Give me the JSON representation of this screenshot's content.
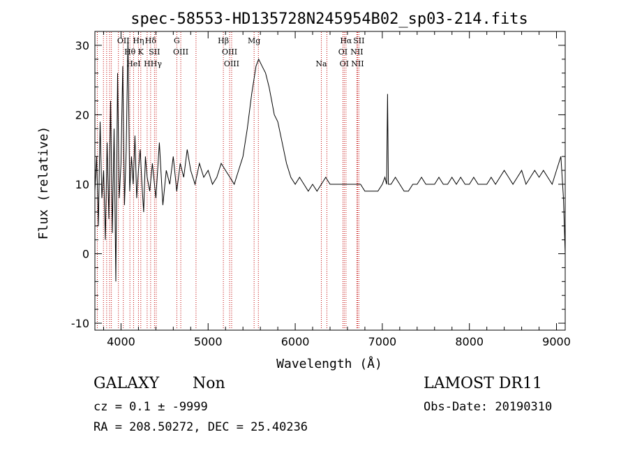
{
  "chart_data": {
    "type": "line",
    "title": "spec-58553-HD135728N245954B02_sp03-214.fits",
    "xlabel": "Wavelength (Å)",
    "ylabel": "Flux (relative)",
    "xlim": [
      3700,
      9100
    ],
    "ylim": [
      -11,
      32
    ],
    "x_ticks": [
      4000,
      5000,
      6000,
      7000,
      8000,
      9000
    ],
    "y_ticks": [
      -10,
      0,
      10,
      20,
      30
    ],
    "grid": false,
    "series": [
      {
        "color": "#000000",
        "x": [
          3700,
          3720,
          3740,
          3760,
          3780,
          3800,
          3820,
          3840,
          3860,
          3880,
          3900,
          3920,
          3940,
          3960,
          3980,
          4000,
          4020,
          4040,
          4060,
          4080,
          4100,
          4120,
          4140,
          4160,
          4180,
          4200,
          4220,
          4240,
          4260,
          4280,
          4300,
          4330,
          4360,
          4400,
          4440,
          4480,
          4520,
          4560,
          4600,
          4640,
          4680,
          4720,
          4760,
          4800,
          4850,
          4900,
          4950,
          5000,
          5050,
          5100,
          5150,
          5200,
          5250,
          5300,
          5350,
          5400,
          5450,
          5500,
          5550,
          5580,
          5620,
          5660,
          5700,
          5730,
          5760,
          5800,
          5850,
          5900,
          5950,
          6000,
          6050,
          6100,
          6150,
          6200,
          6250,
          6300,
          6350,
          6400,
          6450,
          6500,
          6550,
          6600,
          6650,
          6700,
          6750,
          6800,
          6850,
          6900,
          6950,
          7000,
          7030,
          7050,
          7060,
          7070,
          7080,
          7100,
          7150,
          7200,
          7250,
          7300,
          7350,
          7400,
          7450,
          7500,
          7550,
          7600,
          7650,
          7700,
          7750,
          7800,
          7850,
          7900,
          7950,
          8000,
          8050,
          8100,
          8150,
          8200,
          8250,
          8300,
          8350,
          8400,
          8450,
          8500,
          8550,
          8600,
          8650,
          8700,
          8750,
          8800,
          8850,
          8900,
          8950,
          9000,
          9050,
          9080,
          9100
        ],
        "y": [
          9,
          14,
          4,
          19,
          8,
          12,
          2,
          16,
          5,
          22,
          3,
          18,
          -4,
          26,
          8,
          13,
          27,
          7,
          15,
          31,
          9,
          14,
          10,
          17,
          8,
          12,
          15,
          10,
          6,
          14,
          11,
          9,
          13,
          8,
          16,
          7,
          12,
          10,
          14,
          9,
          13,
          11,
          15,
          12,
          10,
          13,
          11,
          12,
          10,
          11,
          13,
          12,
          11,
          10,
          12,
          14,
          18,
          23,
          27,
          28,
          27,
          26,
          24,
          22,
          20,
          19,
          16,
          13,
          11,
          10,
          11,
          10,
          9,
          10,
          9,
          10,
          11,
          10,
          10,
          10,
          10,
          10,
          10,
          10,
          10,
          9,
          9,
          9,
          9,
          10,
          11,
          10,
          23,
          10,
          10,
          10,
          11,
          10,
          9,
          9,
          10,
          10,
          11,
          10,
          10,
          10,
          11,
          10,
          10,
          11,
          10,
          11,
          10,
          10,
          11,
          10,
          10,
          10,
          11,
          10,
          11,
          12,
          11,
          10,
          11,
          12,
          10,
          11,
          12,
          11,
          12,
          11,
          10,
          12,
          14,
          8,
          0
        ]
      }
    ],
    "line_labels": [
      {
        "x": 3728,
        "label": ""
      },
      {
        "x": 3798,
        "label": ""
      },
      {
        "x": 3835,
        "label": ""
      },
      {
        "x": 3869,
        "label": ""
      },
      {
        "x": 3889,
        "label": ""
      },
      {
        "x": 3970,
        "label": ""
      },
      {
        "x": 4026,
        "label": "OII"
      },
      {
        "x": 4102,
        "label": "Hθ"
      },
      {
        "x": 4144,
        "label": "HeI"
      },
      {
        "x": 4200,
        "label": "Hη"
      },
      {
        "x": 4227,
        "label": "K"
      },
      {
        "x": 4300,
        "label": "H"
      },
      {
        "x": 4340,
        "label": "Hδ"
      },
      {
        "x": 4384,
        "label": "SII"
      },
      {
        "x": 4404,
        "label": "Hγ"
      },
      {
        "x": 4641,
        "label": "G"
      },
      {
        "x": 4686,
        "label": "OIII"
      },
      {
        "x": 4861,
        "label": ""
      },
      {
        "x": 5175,
        "label": "Hβ"
      },
      {
        "x": 5247,
        "label": "OIII"
      },
      {
        "x": 5270,
        "label": "OIII"
      },
      {
        "x": 5528,
        "label": "Mg"
      },
      {
        "x": 5577,
        "label": ""
      },
      {
        "x": 6300,
        "label": "Na"
      },
      {
        "x": 6364,
        "label": ""
      },
      {
        "x": 6548,
        "label": "OI"
      },
      {
        "x": 6563,
        "label": "OI"
      },
      {
        "x": 6583,
        "label": "Hα"
      },
      {
        "x": 6708,
        "label": "NII"
      },
      {
        "x": 6716,
        "label": "NII"
      },
      {
        "x": 6731,
        "label": "SII"
      }
    ]
  },
  "info": {
    "class_label": "GALAXY",
    "subclass_label": "Non",
    "survey": "LAMOST DR11",
    "cz_line": "cz = 0.1 ± -9999",
    "obs_date": "Obs-Date: 20190310",
    "coords": "RA = 208.50272, DEC =  25.40236"
  }
}
